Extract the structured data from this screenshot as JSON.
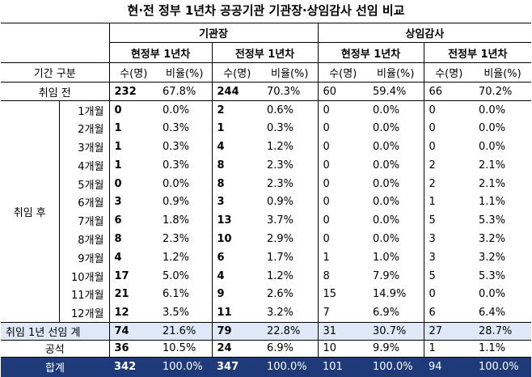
{
  "title": "현·전 정부 1년차 공공기관 기관장·상임감사 선임 비교",
  "headers": {
    "group1": "기관장",
    "group2": "상임감사",
    "sub_current": "현정부 1년차",
    "sub_previous": "전정부 1년차",
    "period_label": "기간 구분",
    "col_count": "수(명)",
    "col_ratio": "비율(%)"
  },
  "before": {
    "label": "취임 전",
    "values": [
      "232",
      "67.8%",
      "244",
      "70.3%",
      "60",
      "59.4%",
      "66",
      "70.2%"
    ]
  },
  "after_label": "취임 후",
  "months": [
    {
      "label": "1개월",
      "values": [
        "0",
        "0.0%",
        "2",
        "0.6%",
        "0",
        "0.0%",
        "0",
        "0.0%"
      ]
    },
    {
      "label": "2개월",
      "values": [
        "1",
        "0.3%",
        "1",
        "0.3%",
        "0",
        "0.0%",
        "0",
        "0.0%"
      ]
    },
    {
      "label": "3개월",
      "values": [
        "1",
        "0.3%",
        "4",
        "1.2%",
        "0",
        "0.0%",
        "0",
        "0.0%"
      ]
    },
    {
      "label": "4개월",
      "values": [
        "1",
        "0.3%",
        "8",
        "2.3%",
        "0",
        "0.0%",
        "2",
        "2.1%"
      ]
    },
    {
      "label": "5개월",
      "values": [
        "0",
        "0.0%",
        "8",
        "2.3%",
        "0",
        "0.0%",
        "2",
        "2.1%"
      ]
    },
    {
      "label": "6개월",
      "values": [
        "3",
        "0.9%",
        "3",
        "0.9%",
        "0",
        "0.0%",
        "1",
        "1.1%"
      ]
    },
    {
      "label": "7개월",
      "values": [
        "6",
        "1.8%",
        "13",
        "3.7%",
        "0",
        "0.0%",
        "5",
        "5.3%"
      ]
    },
    {
      "label": "8개월",
      "values": [
        "8",
        "2.3%",
        "10",
        "2.9%",
        "0",
        "0.0%",
        "3",
        "3.2%"
      ]
    },
    {
      "label": "9개월",
      "values": [
        "4",
        "1.2%",
        "6",
        "1.7%",
        "1",
        "1.0%",
        "3",
        "3.2%"
      ]
    },
    {
      "label": "10개월",
      "values": [
        "17",
        "5.0%",
        "4",
        "1.2%",
        "8",
        "7.9%",
        "5",
        "5.3%"
      ]
    },
    {
      "label": "11개월",
      "values": [
        "21",
        "6.1%",
        "9",
        "2.6%",
        "15",
        "14.9%",
        "0",
        "0.0%"
      ]
    },
    {
      "label": "12개월",
      "values": [
        "12",
        "3.5%",
        "11",
        "3.2%",
        "7",
        "6.9%",
        "6",
        "6.4%"
      ]
    }
  ],
  "first_year": {
    "label": "취임 1년 선임 계",
    "values": [
      "74",
      "21.6%",
      "79",
      "22.8%",
      "31",
      "30.7%",
      "27",
      "28.7%"
    ]
  },
  "vacant": {
    "label": "공석",
    "values": [
      "36",
      "10.5%",
      "24",
      "6.9%",
      "10",
      "9.9%",
      "1",
      "1.1%"
    ]
  },
  "total": {
    "label": "합계",
    "values": [
      "342",
      "100.0%",
      "347",
      "100.0%",
      "101",
      "100.0%",
      "94",
      "100.0%"
    ]
  },
  "colors": {
    "highlight_row": "#dfe8f6",
    "total_row": "#1f3a78",
    "total_text": "#ffffff"
  }
}
